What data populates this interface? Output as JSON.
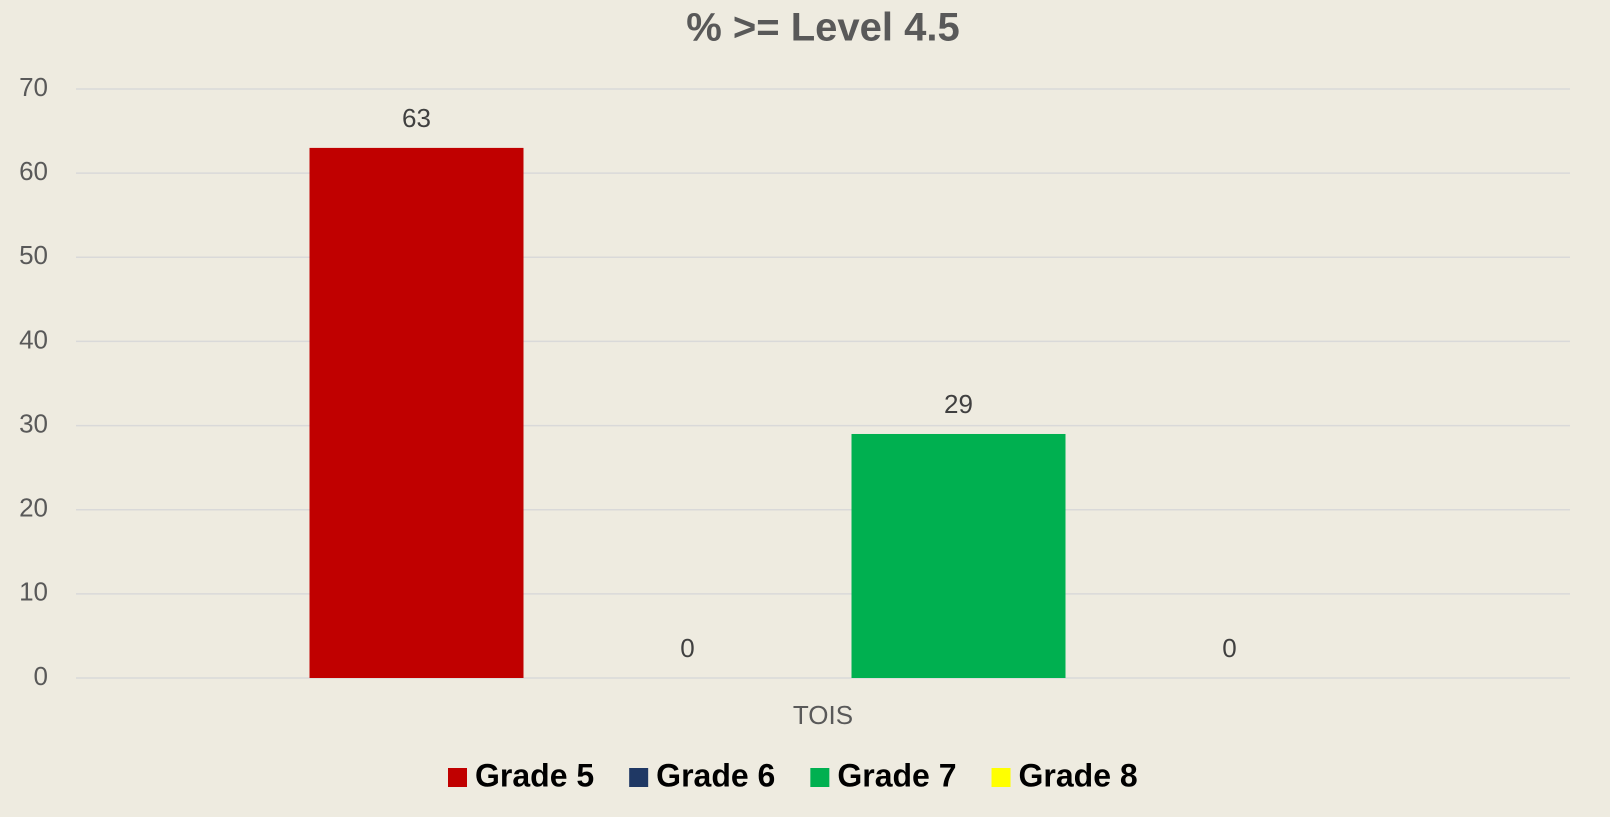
{
  "chart_data": {
    "type": "bar",
    "title": "% >= Level 4.5",
    "categories": [
      "TOIS"
    ],
    "series": [
      {
        "name": "Grade 5",
        "color": "#c00000",
        "values": [
          63
        ]
      },
      {
        "name": "Grade 6",
        "color": "#1f3864",
        "values": [
          0
        ]
      },
      {
        "name": "Grade 7",
        "color": "#00b050",
        "values": [
          29
        ]
      },
      {
        "name": "Grade 8",
        "color": "#ffff00",
        "values": [
          0
        ]
      }
    ],
    "ylim": [
      0,
      70
    ],
    "yticks": [
      0,
      10,
      20,
      30,
      40,
      50,
      60,
      70
    ],
    "grid": true,
    "legend": "bottom"
  }
}
